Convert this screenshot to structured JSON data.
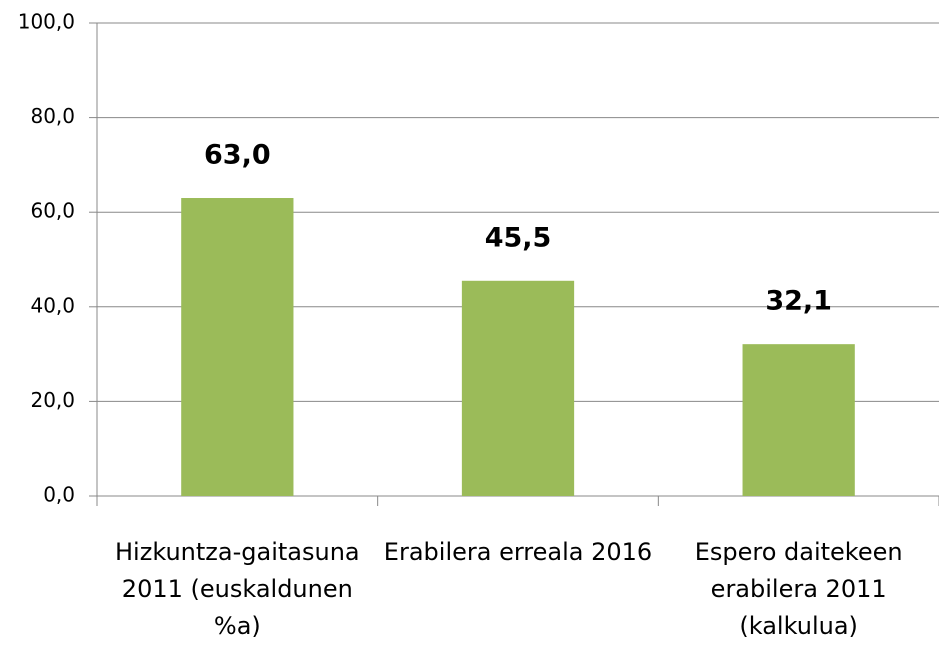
{
  "chart_data": {
    "type": "bar",
    "categories": [
      "Hizkuntza-gaitasuna 2011 (euskaldunen %a)",
      "Erabilera erreala 2016",
      "Espero daitekeen erabilera 2011 (kalkulua)"
    ],
    "values": [
      63.0,
      45.5,
      32.1
    ],
    "value_labels": [
      "63,0",
      "45,5",
      "32,1"
    ],
    "color": "#9bbb59",
    "ylim": [
      0,
      100
    ],
    "yticks": [
      {
        "value": 0,
        "label": "0,0"
      },
      {
        "value": 20,
        "label": "20,0"
      },
      {
        "value": 40,
        "label": "40,0"
      },
      {
        "value": 60,
        "label": "60,0"
      },
      {
        "value": 80,
        "label": "80,0"
      },
      {
        "value": 100,
        "label": "100,0"
      }
    ],
    "grid": true
  }
}
